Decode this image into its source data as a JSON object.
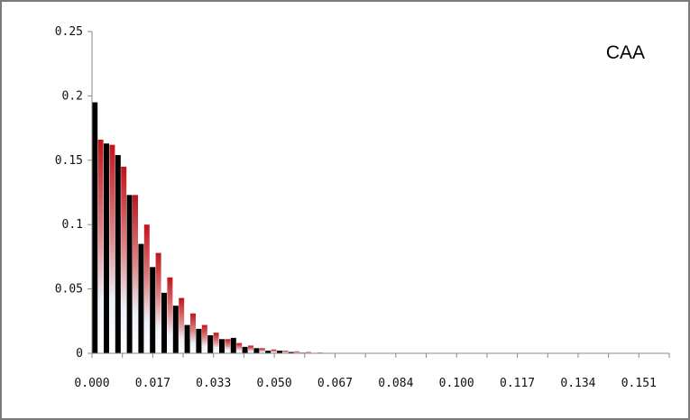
{
  "chart_data": {
    "type": "bar",
    "title": "",
    "xlabel": "",
    "ylabel": "",
    "ylim": [
      0,
      0.25
    ],
    "grid": false,
    "annotation": "CAA",
    "y_ticks": [
      "0",
      "0.05",
      "0.1",
      "0.15",
      "0.2",
      "0.25"
    ],
    "x_ticks": [
      "0.000",
      "0.017",
      "0.033",
      "0.050",
      "0.067",
      "0.084",
      "0.100",
      "0.117",
      "0.134",
      "0.151"
    ],
    "bin_count": 50,
    "series": [
      {
        "color": "#000000",
        "style": "solid",
        "values": [
          0.195,
          0.163,
          0.154,
          0.123,
          0.085,
          0.067,
          0.047,
          0.037,
          0.022,
          0.019,
          0.014,
          0.011,
          0.012,
          0.005,
          0.004,
          0.002,
          0.002,
          0.001,
          0.0005,
          0,
          0,
          0,
          0,
          0,
          0,
          0,
          0,
          0,
          0,
          0,
          0,
          0,
          0,
          0,
          0,
          0,
          0,
          0,
          0,
          0,
          0,
          0,
          0,
          0,
          0,
          0,
          0,
          0,
          0,
          0
        ]
      },
      {
        "color": "#c0141b",
        "style": "gradient",
        "values": [
          0.166,
          0.162,
          0.145,
          0.123,
          0.1,
          0.078,
          0.059,
          0.043,
          0.031,
          0.022,
          0.016,
          0.011,
          0.008,
          0.006,
          0.004,
          0.003,
          0.002,
          0.0015,
          0.001,
          0.0005,
          0,
          0,
          0,
          0,
          0,
          0,
          0,
          0,
          0,
          0,
          0,
          0,
          0,
          0,
          0,
          0,
          0,
          0,
          0,
          0,
          0,
          0,
          0,
          0,
          0,
          0,
          0,
          0,
          0,
          0
        ]
      }
    ]
  }
}
